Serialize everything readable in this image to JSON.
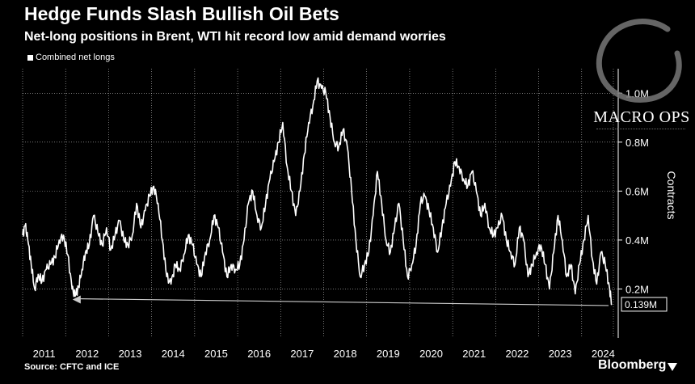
{
  "header": {
    "title": "Hedge Funds Slash Bullish Oil Bets",
    "subtitle": "Net-long positions in Brent, WTI hit record low amid demand worries"
  },
  "footer": {
    "source": "Source: CFTC and ICE",
    "brand": "Bloomberg"
  },
  "watermark": {
    "text": "MACRO OPS"
  },
  "colors": {
    "background": "#000000",
    "line": "#ffffff",
    "grid": "#ffffff"
  },
  "chart_data": {
    "type": "line",
    "title": "Hedge Funds Slash Bullish Oil Bets",
    "subtitle": "Net-long positions in Brent, WTI hit record low amid demand worries",
    "ylabel": "Contracts",
    "xlabel": "",
    "ylim": [
      0,
      1.1
    ],
    "xlim": [
      2011,
      2024.85
    ],
    "grid": true,
    "legend_position": "top-left",
    "x_ticks": [
      "2011",
      "2012",
      "2013",
      "2014",
      "2015",
      "2016",
      "2017",
      "2018",
      "2019",
      "2020",
      "2021",
      "2022",
      "2023",
      "2024"
    ],
    "y_ticks": [
      {
        "value": 0.2,
        "label": "0.2M"
      },
      {
        "value": 0.4,
        "label": "0.4M"
      },
      {
        "value": 0.6,
        "label": "0.6M"
      },
      {
        "value": 0.8,
        "label": "0.8M"
      },
      {
        "value": 1.0,
        "label": "1.0M"
      }
    ],
    "annotation": {
      "label": "0.139M",
      "value": 0.139
    },
    "series": [
      {
        "name": "Combined net longs",
        "x": [
          2011.0,
          2011.06,
          2011.12,
          2011.2,
          2011.28,
          2011.36,
          2011.45,
          2011.55,
          2011.65,
          2011.75,
          2011.85,
          2011.95,
          2012.05,
          2012.15,
          2012.22,
          2012.3,
          2012.38,
          2012.46,
          2012.55,
          2012.65,
          2012.75,
          2012.85,
          2012.95,
          2013.05,
          2013.15,
          2013.25,
          2013.35,
          2013.45,
          2013.55,
          2013.65,
          2013.75,
          2013.85,
          2013.95,
          2014.05,
          2014.15,
          2014.25,
          2014.35,
          2014.45,
          2014.55,
          2014.65,
          2014.75,
          2014.85,
          2014.95,
          2015.05,
          2015.15,
          2015.25,
          2015.35,
          2015.45,
          2015.55,
          2015.65,
          2015.75,
          2015.85,
          2015.95,
          2016.05,
          2016.15,
          2016.25,
          2016.35,
          2016.45,
          2016.55,
          2016.65,
          2016.75,
          2016.85,
          2016.95,
          2017.05,
          2017.15,
          2017.25,
          2017.35,
          2017.45,
          2017.55,
          2017.65,
          2017.75,
          2017.85,
          2017.95,
          2018.05,
          2018.15,
          2018.25,
          2018.35,
          2018.45,
          2018.55,
          2018.65,
          2018.75,
          2018.85,
          2018.95,
          2019.05,
          2019.15,
          2019.25,
          2019.35,
          2019.45,
          2019.55,
          2019.65,
          2019.75,
          2019.85,
          2019.95,
          2020.05,
          2020.15,
          2020.25,
          2020.35,
          2020.45,
          2020.55,
          2020.65,
          2020.75,
          2020.85,
          2020.95,
          2021.05,
          2021.15,
          2021.25,
          2021.35,
          2021.45,
          2021.55,
          2021.65,
          2021.75,
          2021.85,
          2021.95,
          2022.05,
          2022.15,
          2022.25,
          2022.35,
          2022.45,
          2022.55,
          2022.65,
          2022.75,
          2022.85,
          2022.95,
          2023.05,
          2023.15,
          2023.25,
          2023.35,
          2023.45,
          2023.55,
          2023.65,
          2023.75,
          2023.85,
          2023.95,
          2024.05,
          2024.15,
          2024.25,
          2024.35,
          2024.45,
          2024.55,
          2024.65,
          2024.7
        ],
        "y": [
          0.42,
          0.46,
          0.4,
          0.3,
          0.2,
          0.26,
          0.23,
          0.28,
          0.3,
          0.33,
          0.4,
          0.42,
          0.34,
          0.2,
          0.17,
          0.21,
          0.28,
          0.35,
          0.38,
          0.5,
          0.43,
          0.38,
          0.45,
          0.36,
          0.42,
          0.48,
          0.4,
          0.38,
          0.42,
          0.55,
          0.45,
          0.52,
          0.58,
          0.62,
          0.55,
          0.4,
          0.25,
          0.22,
          0.3,
          0.28,
          0.34,
          0.42,
          0.38,
          0.3,
          0.25,
          0.35,
          0.4,
          0.5,
          0.45,
          0.35,
          0.25,
          0.3,
          0.28,
          0.3,
          0.4,
          0.55,
          0.6,
          0.5,
          0.45,
          0.55,
          0.65,
          0.72,
          0.8,
          0.88,
          0.7,
          0.6,
          0.5,
          0.6,
          0.75,
          0.88,
          0.95,
          1.05,
          1.02,
          1.0,
          0.9,
          0.8,
          0.78,
          0.85,
          0.78,
          0.6,
          0.4,
          0.25,
          0.3,
          0.35,
          0.5,
          0.68,
          0.55,
          0.4,
          0.35,
          0.45,
          0.55,
          0.4,
          0.25,
          0.3,
          0.38,
          0.55,
          0.58,
          0.52,
          0.45,
          0.35,
          0.45,
          0.55,
          0.62,
          0.72,
          0.7,
          0.65,
          0.62,
          0.68,
          0.6,
          0.5,
          0.55,
          0.45,
          0.42,
          0.45,
          0.5,
          0.4,
          0.35,
          0.3,
          0.45,
          0.4,
          0.25,
          0.3,
          0.35,
          0.38,
          0.3,
          0.2,
          0.35,
          0.5,
          0.4,
          0.25,
          0.3,
          0.18,
          0.3,
          0.4,
          0.5,
          0.32,
          0.22,
          0.35,
          0.3,
          0.2,
          0.139
        ]
      }
    ]
  }
}
